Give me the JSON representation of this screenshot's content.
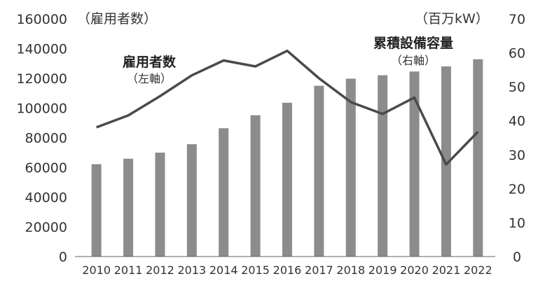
{
  "chart_data": {
    "type": "bar",
    "categories": [
      "2010",
      "2011",
      "2012",
      "2013",
      "2014",
      "2015",
      "2016",
      "2017",
      "2018",
      "2019",
      "2020",
      "2021",
      "2022"
    ],
    "left_axis": {
      "unit_label": "（雇用者数）",
      "ylim": [
        0,
        160000
      ],
      "ticks": [
        0,
        20000,
        40000,
        60000,
        80000,
        100000,
        120000,
        140000,
        160000
      ]
    },
    "right_axis": {
      "unit_label": "（百万kW）",
      "ylim": [
        0,
        70
      ],
      "ticks": [
        0,
        10,
        20,
        30,
        40,
        50,
        60,
        70
      ]
    },
    "series": [
      {
        "name": "累積設備容量",
        "axis_note": "（右軸）",
        "kind": "bar",
        "axis": "right",
        "color": "#8c8c8c",
        "values": [
          27.2,
          28.8,
          30.6,
          33.1,
          37.8,
          41.6,
          45.3,
          50.3,
          52.4,
          53.4,
          54.5,
          56.0,
          58.1
        ]
      },
      {
        "name": "雇用者数",
        "axis_note": "（左軸）",
        "kind": "line",
        "axis": "left",
        "color": "#4a4a4a",
        "values": [
          87000,
          95000,
          108000,
          122000,
          132000,
          128000,
          138500,
          120000,
          104000,
          96000,
          107000,
          62000,
          84000
        ]
      }
    ],
    "grid": false
  }
}
